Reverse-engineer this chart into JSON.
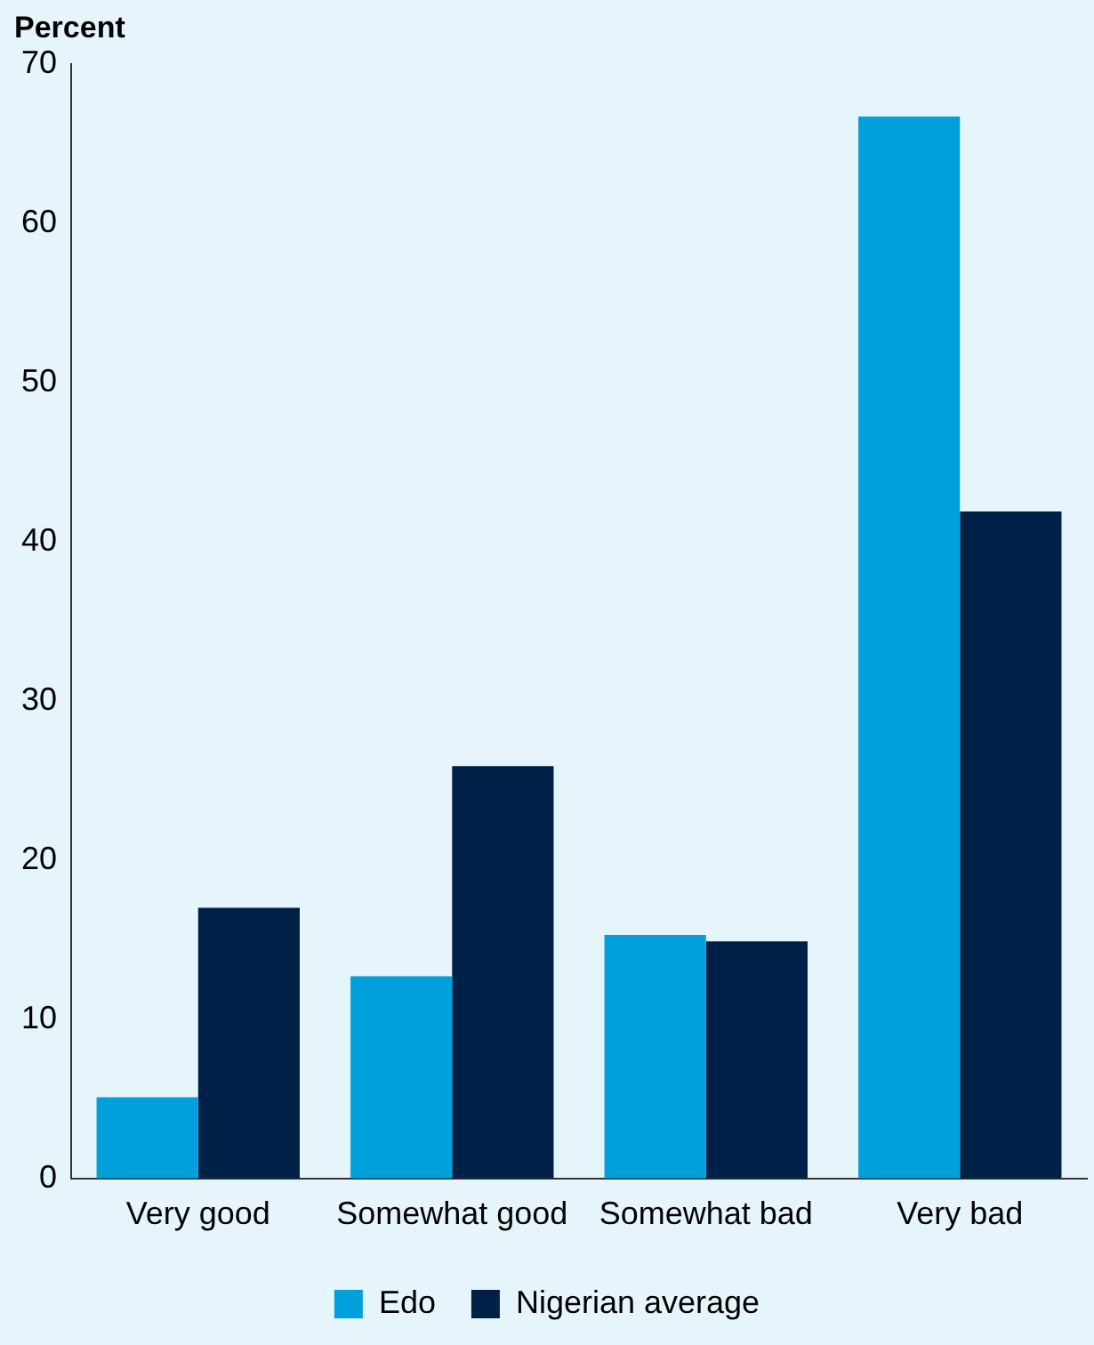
{
  "chart_data": {
    "type": "bar",
    "ylabel": "Percent",
    "categories": [
      "Very good",
      "Somewhat good",
      "Somewhat bad",
      "Very bad"
    ],
    "series": [
      {
        "name": "Edo",
        "color": "#00a0dc",
        "values": [
          5.1,
          12.7,
          15.3,
          66.7
        ]
      },
      {
        "name": "Nigerian average",
        "color": "#002147",
        "values": [
          17,
          25.9,
          14.9,
          41.9
        ]
      }
    ],
    "ylim": [
      0,
      70
    ],
    "yticks": [
      0,
      10,
      20,
      30,
      40,
      50,
      60,
      70
    ],
    "grid": false,
    "legend": "bottom"
  }
}
